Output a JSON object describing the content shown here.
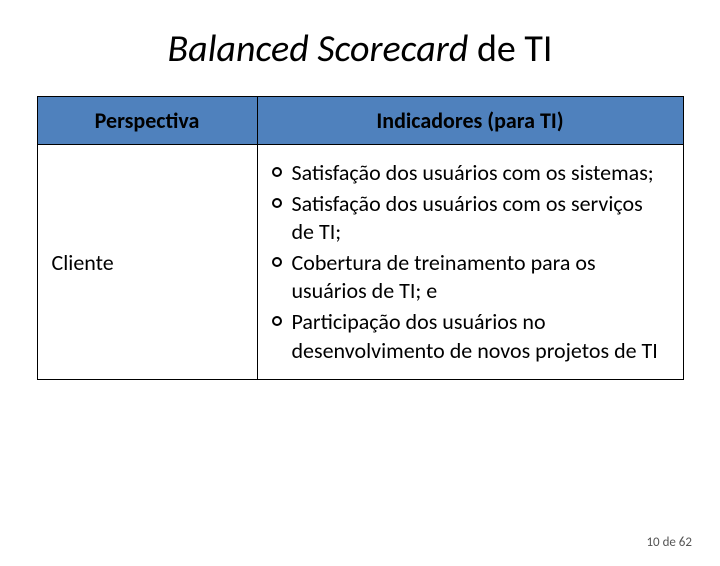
{
  "title_italic": "Balanced Scorecard",
  "title_rest": " de TI",
  "table": {
    "header_col1": "Perspectiva",
    "header_col2": "Indicadores (para TI)",
    "row1_perspectiva": "Cliente",
    "row1_bullets": [
      "Satisfação dos usuários com os sistemas;",
      "Satisfação dos usuários com os serviços de TI;",
      "Cobertura de treinamento para os usuários de TI; e",
      "Participação dos usuários no desenvolvimento de novos projetos de TI"
    ]
  },
  "footer": "10 de 62",
  "colors": {
    "header_bg": "#4f81bd",
    "border": "#000000",
    "text": "#000000",
    "footer_text": "#555555"
  }
}
